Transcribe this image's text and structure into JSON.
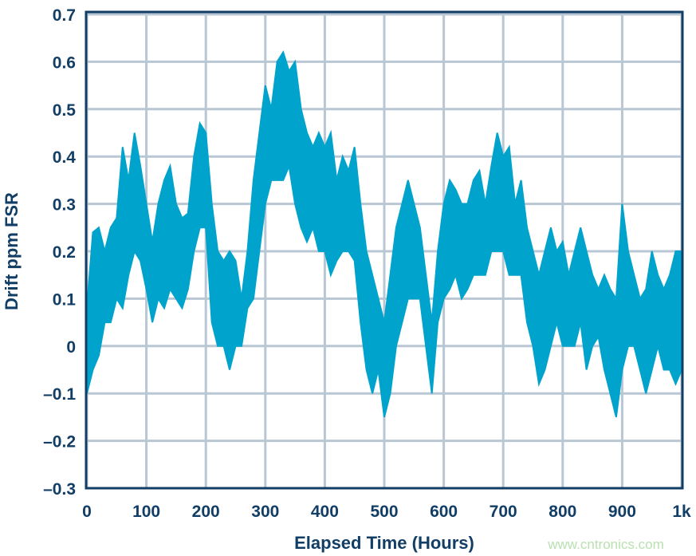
{
  "chart_data": {
    "type": "area",
    "title": "",
    "xlabel": "Elapsed Time (Hours)",
    "ylabel": "Drift ppm FSR",
    "xlim": [
      0,
      1000
    ],
    "ylim": [
      -0.3,
      0.7
    ],
    "grid": true,
    "x_ticks": [
      0,
      100,
      200,
      300,
      400,
      500,
      600,
      700,
      800,
      900,
      1000
    ],
    "x_tick_labels": [
      "0",
      "100",
      "200",
      "300",
      "400",
      "500",
      "600",
      "700",
      "800",
      "900",
      "1k"
    ],
    "y_ticks": [
      0.7,
      0.6,
      0.5,
      0.4,
      0.3,
      0.2,
      0.1,
      0,
      -0.1,
      -0.2,
      -0.3
    ],
    "y_tick_labels": [
      "0.7",
      "0.6",
      "0.5",
      "0.4",
      "0.3",
      "0.2",
      "0.1",
      "0",
      "–0.1",
      "–0.2",
      "–0.3"
    ],
    "series_color": "#00a3cc",
    "grid_color": "#b8c7d3",
    "axis_color": "#123e66",
    "x": [
      0,
      10,
      20,
      30,
      40,
      50,
      60,
      70,
      80,
      90,
      100,
      110,
      120,
      130,
      140,
      150,
      160,
      170,
      180,
      190,
      200,
      210,
      220,
      230,
      240,
      250,
      260,
      270,
      280,
      290,
      300,
      310,
      320,
      330,
      340,
      350,
      360,
      370,
      380,
      390,
      400,
      410,
      420,
      430,
      440,
      450,
      460,
      470,
      480,
      490,
      500,
      510,
      520,
      530,
      540,
      550,
      560,
      570,
      580,
      590,
      600,
      610,
      620,
      630,
      640,
      650,
      660,
      670,
      680,
      690,
      700,
      710,
      720,
      730,
      740,
      750,
      760,
      770,
      780,
      790,
      800,
      810,
      820,
      830,
      840,
      850,
      860,
      870,
      880,
      890,
      900,
      910,
      920,
      930,
      940,
      950,
      960,
      970,
      980,
      990,
      1000
    ],
    "upper": [
      0.08,
      0.24,
      0.25,
      0.2,
      0.25,
      0.27,
      0.42,
      0.35,
      0.45,
      0.38,
      0.3,
      0.22,
      0.3,
      0.35,
      0.38,
      0.3,
      0.27,
      0.28,
      0.4,
      0.47,
      0.45,
      0.3,
      0.2,
      0.18,
      0.2,
      0.18,
      0.1,
      0.2,
      0.35,
      0.45,
      0.55,
      0.5,
      0.6,
      0.62,
      0.58,
      0.6,
      0.5,
      0.45,
      0.42,
      0.45,
      0.42,
      0.45,
      0.35,
      0.4,
      0.37,
      0.42,
      0.3,
      0.2,
      0.15,
      0.1,
      0.05,
      0.15,
      0.25,
      0.3,
      0.35,
      0.3,
      0.25,
      0.15,
      0.05,
      0.2,
      0.3,
      0.35,
      0.33,
      0.3,
      0.3,
      0.35,
      0.37,
      0.3,
      0.38,
      0.45,
      0.4,
      0.42,
      0.3,
      0.35,
      0.25,
      0.2,
      0.15,
      0.2,
      0.25,
      0.2,
      0.22,
      0.15,
      0.2,
      0.25,
      0.2,
      0.15,
      0.12,
      0.15,
      0.12,
      0.1,
      0.3,
      0.2,
      0.15,
      0.1,
      0.12,
      0.2,
      0.15,
      0.12,
      0.15,
      0.2,
      0.2
    ],
    "lower": [
      -0.1,
      -0.05,
      -0.02,
      0.05,
      0.05,
      0.1,
      0.08,
      0.15,
      0.2,
      0.18,
      0.12,
      0.05,
      0.1,
      0.08,
      0.12,
      0.1,
      0.08,
      0.12,
      0.2,
      0.25,
      0.25,
      0.05,
      0.0,
      0.0,
      -0.05,
      0.0,
      0.0,
      0.08,
      0.1,
      0.2,
      0.3,
      0.35,
      0.35,
      0.35,
      0.38,
      0.3,
      0.25,
      0.22,
      0.25,
      0.2,
      0.2,
      0.15,
      0.18,
      0.2,
      0.2,
      0.18,
      0.05,
      -0.05,
      -0.1,
      -0.05,
      -0.15,
      -0.1,
      0.0,
      0.05,
      0.1,
      0.1,
      0.1,
      0.0,
      -0.1,
      0.05,
      0.1,
      0.12,
      0.15,
      0.1,
      0.12,
      0.15,
      0.15,
      0.15,
      0.2,
      0.2,
      0.2,
      0.15,
      0.15,
      0.15,
      0.05,
      0.0,
      -0.08,
      -0.05,
      0.0,
      0.05,
      0.0,
      0.0,
      0.0,
      0.05,
      -0.05,
      0.0,
      0.02,
      -0.05,
      -0.1,
      -0.15,
      -0.05,
      0.0,
      0.0,
      -0.05,
      -0.1,
      -0.05,
      0.0,
      -0.05,
      -0.05,
      -0.08,
      -0.05
    ]
  },
  "watermark": "www.cntronics.com"
}
